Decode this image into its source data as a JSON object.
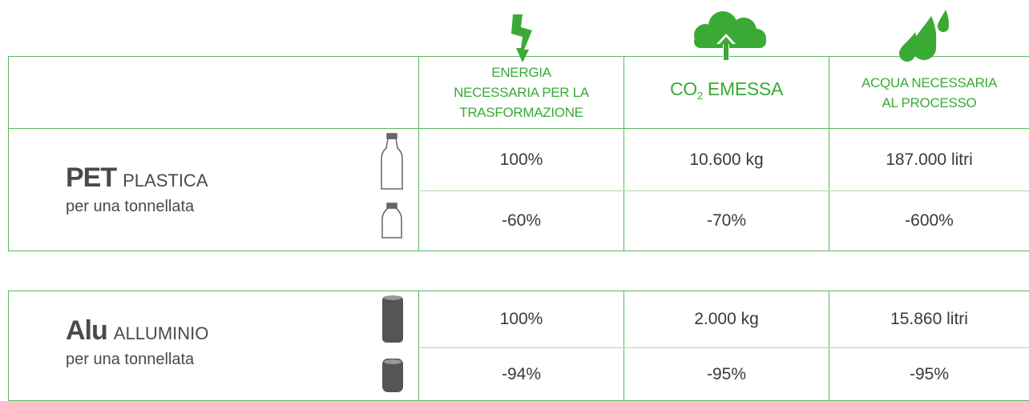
{
  "header": {
    "columns": [
      {
        "lines": [
          "ENERGIA",
          "NECESSARIA PER LA",
          "TRASFORMAZIONE"
        ]
      },
      {
        "parts": [
          "CO",
          "2",
          " EMESSA"
        ]
      },
      {
        "lines": [
          "ACQUA NECESSARIA",
          "AL PROCESSO"
        ]
      }
    ]
  },
  "sections": [
    {
      "name": "PET",
      "material": "PLASTICA",
      "note": "per una tonnellata",
      "rows": [
        [
          "100%",
          "10.600 kg",
          "187.000 litri"
        ],
        [
          "-60%",
          "-70%",
          "-600%"
        ]
      ]
    },
    {
      "name": "Alu",
      "material": "ALLUMINIO",
      "note": "per una tonnellata",
      "rows": [
        [
          "100%",
          "2.000 kg",
          "15.860 litri"
        ],
        [
          "-94%",
          "-95%",
          "-95%"
        ]
      ]
    }
  ]
}
